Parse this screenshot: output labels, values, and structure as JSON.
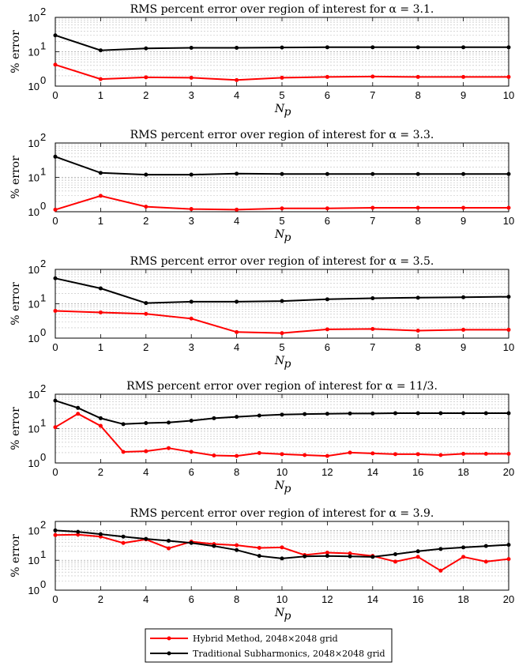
{
  "chart_data": [
    {
      "type": "line",
      "title": "RMS percent error over region of interest for α = 3.1.",
      "xlabel": "N_p",
      "ylabel": "% error",
      "xlim": [
        0,
        10
      ],
      "ylim": [
        1,
        100
      ],
      "yscale": "log",
      "xticks": [
        0,
        1,
        2,
        3,
        4,
        5,
        6,
        7,
        8,
        9,
        10
      ],
      "grid": true,
      "x": [
        0,
        1,
        2,
        3,
        4,
        5,
        6,
        7,
        8,
        9,
        10
      ],
      "series": [
        {
          "key": "hybrid",
          "color": "#ff0000",
          "values": [
            4.2,
            1.6,
            1.8,
            1.75,
            1.5,
            1.75,
            1.85,
            1.9,
            1.85,
            1.85,
            1.85
          ]
        },
        {
          "key": "traditional",
          "color": "#000000",
          "values": [
            30,
            11,
            12.5,
            13,
            13,
            13.3,
            13.5,
            13.5,
            13.5,
            13.5,
            13.5
          ]
        }
      ]
    },
    {
      "type": "line",
      "title": "RMS percent error over region of interest for α = 3.3.",
      "xlabel": "N_p",
      "ylabel": "% error",
      "xlim": [
        0,
        10
      ],
      "ylim": [
        1,
        100
      ],
      "yscale": "log",
      "xticks": [
        0,
        1,
        2,
        3,
        4,
        5,
        6,
        7,
        8,
        9,
        10
      ],
      "grid": true,
      "x": [
        0,
        1,
        2,
        3,
        4,
        5,
        6,
        7,
        8,
        9,
        10
      ],
      "series": [
        {
          "key": "hybrid",
          "color": "#ff0000",
          "values": [
            1.15,
            2.9,
            1.4,
            1.2,
            1.15,
            1.25,
            1.25,
            1.3,
            1.3,
            1.3,
            1.3
          ]
        },
        {
          "key": "traditional",
          "color": "#000000",
          "values": [
            40,
            13.5,
            12,
            12,
            12.8,
            12.5,
            12.5,
            12.5,
            12.5,
            12.5,
            12.5
          ]
        }
      ]
    },
    {
      "type": "line",
      "title": "RMS percent error over region of interest for α = 3.5.",
      "xlabel": "N_p",
      "ylabel": "% error",
      "xlim": [
        0,
        10
      ],
      "ylim": [
        1,
        100
      ],
      "yscale": "log",
      "xticks": [
        0,
        1,
        2,
        3,
        4,
        5,
        6,
        7,
        8,
        9,
        10
      ],
      "grid": true,
      "x": [
        0,
        1,
        2,
        3,
        4,
        5,
        6,
        7,
        8,
        9,
        10
      ],
      "series": [
        {
          "key": "hybrid",
          "color": "#ff0000",
          "values": [
            6.2,
            5.6,
            5.1,
            3.7,
            1.5,
            1.4,
            1.8,
            1.85,
            1.65,
            1.75,
            1.75
          ]
        },
        {
          "key": "traditional",
          "color": "#000000",
          "values": [
            55,
            28,
            10.5,
            11.5,
            11.5,
            12,
            13.5,
            14.5,
            15,
            15.5,
            16
          ]
        }
      ]
    },
    {
      "type": "line",
      "title": "RMS percent error over region of interest for α = 11/3.",
      "xlabel": "N_p",
      "ylabel": "% error",
      "xlim": [
        0,
        20
      ],
      "ylim": [
        1,
        100
      ],
      "yscale": "log",
      "xticks": [
        0,
        2,
        4,
        6,
        8,
        10,
        12,
        14,
        16,
        18,
        20
      ],
      "grid": true,
      "x": [
        0,
        1,
        2,
        3,
        4,
        5,
        6,
        7,
        8,
        9,
        10,
        11,
        12,
        13,
        14,
        15,
        16,
        17,
        18,
        19,
        20
      ],
      "series": [
        {
          "key": "hybrid",
          "color": "#ff0000",
          "values": [
            11,
            27,
            12,
            2.1,
            2.2,
            2.7,
            2.1,
            1.65,
            1.6,
            1.95,
            1.8,
            1.7,
            1.6,
            2,
            1.9,
            1.8,
            1.8,
            1.7,
            1.85,
            1.85,
            1.85
          ]
        },
        {
          "key": "traditional",
          "color": "#000000",
          "values": [
            65,
            40,
            20,
            13.5,
            14.5,
            15,
            17,
            20,
            22,
            24,
            25.5,
            26.5,
            27,
            27.5,
            27.5,
            28,
            28,
            28,
            28,
            28,
            28
          ]
        }
      ]
    },
    {
      "type": "line",
      "title": "RMS percent error over region of interest for α = 3.9.",
      "xlabel": "N_p",
      "ylabel": "% error",
      "xlim": [
        0,
        20
      ],
      "ylim": [
        1,
        200
      ],
      "yscale": "log",
      "xticks": [
        0,
        2,
        4,
        6,
        8,
        10,
        12,
        14,
        16,
        18,
        20
      ],
      "grid": true,
      "x": [
        0,
        1,
        2,
        3,
        4,
        5,
        6,
        7,
        8,
        9,
        10,
        11,
        12,
        13,
        14,
        15,
        16,
        17,
        18,
        19,
        20
      ],
      "series": [
        {
          "key": "hybrid",
          "color": "#ff0000",
          "values": [
            70,
            72,
            62,
            38,
            50,
            25,
            42,
            35,
            32,
            26,
            27,
            15,
            18,
            17,
            14,
            9,
            13,
            4.5,
            13,
            9,
            11
          ]
        },
        {
          "key": "traditional",
          "color": "#000000",
          "values": [
            100,
            90,
            75,
            62,
            52,
            45,
            38,
            30,
            22,
            14,
            11.5,
            13.5,
            14,
            13.5,
            13,
            16,
            20,
            24,
            27,
            30,
            33
          ]
        }
      ]
    }
  ],
  "legend": {
    "placement": "bottom-center",
    "items": [
      {
        "label": "Hybrid Method, 2048×2048 grid",
        "color": "#ff0000"
      },
      {
        "label": "Traditional Subharmonics, 2048×2048 grid",
        "color": "#000000"
      }
    ]
  }
}
